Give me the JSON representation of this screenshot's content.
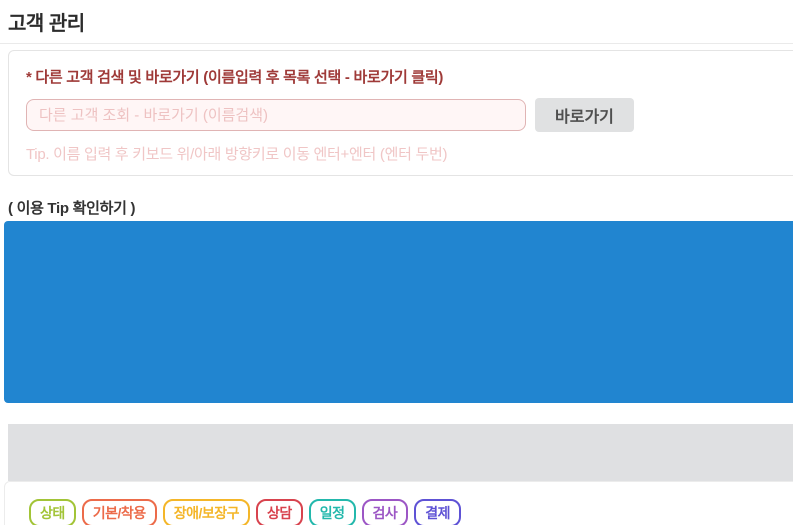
{
  "page": {
    "title": "고객 관리"
  },
  "search_section": {
    "label": "* 다른 고객 검색 및 바로가기 (이름입력 후 목록 선택 - 바로가기 클릭)",
    "input_value": "",
    "input_placeholder": "다른 고객 조회 - 바로가기 (이름검색)",
    "button_label": "바로가기",
    "tip": "Tip. 이름 입력 후 키보드 위/아래 방향키로 이동 엔터+엔터 (엔터 두번)"
  },
  "tip_link_label": "( 이용 Tip 확인하기 )",
  "colors": {
    "accent_blue_panel": "#2185d0",
    "gray_bar": "#dfe0e2",
    "error_text": "#9f3a38",
    "error_input_bg": "#fff6f6",
    "error_input_border": "#e0b4b4",
    "placeholder_pink": "#eec2c2",
    "tip_pink": "#f0c6c6",
    "button_gray": "#e0e1e2"
  },
  "tabs": [
    {
      "slug": "status",
      "label": "상태",
      "color": "#a2c437"
    },
    {
      "slug": "basic-wear",
      "label": "기본/착용",
      "color": "#ec6b4a"
    },
    {
      "slug": "disability-aid",
      "label": "장애/보장구",
      "color": "#f4b629"
    },
    {
      "slug": "consult",
      "label": "상담",
      "color": "#d8434e"
    },
    {
      "slug": "schedule",
      "label": "일정",
      "color": "#23b8ac"
    },
    {
      "slug": "exam",
      "label": "검사",
      "color": "#9c56c5"
    },
    {
      "slug": "payment",
      "label": "결제",
      "color": "#5e52d5"
    }
  ]
}
